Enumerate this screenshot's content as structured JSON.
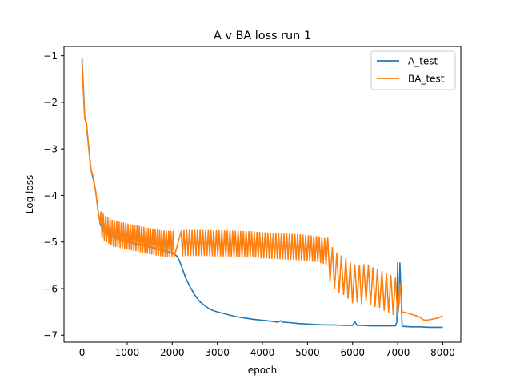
{
  "chart_data": {
    "type": "line",
    "title": "A v BA loss run 1",
    "xlabel": "epoch",
    "ylabel": "Log loss",
    "xlim": [
      -400,
      8400
    ],
    "ylim": [
      -7.15,
      -0.8
    ],
    "xticks": [
      0,
      1000,
      2000,
      3000,
      4000,
      5000,
      6000,
      7000,
      8000
    ],
    "xtick_labels": [
      "0",
      "1000",
      "2000",
      "3000",
      "4000",
      "5000",
      "6000",
      "7000",
      "8000"
    ],
    "yticks": [
      -7,
      -6,
      -5,
      -4,
      -3,
      -2,
      -1
    ],
    "ytick_labels": [
      "−7",
      "−6",
      "−5",
      "−4",
      "−3",
      "−2",
      "−1"
    ],
    "grid": false,
    "legend_position": "top-right",
    "series": [
      {
        "name": "A_test",
        "color": "#1f77b4",
        "x": [
          0,
          20,
          60,
          100,
          150,
          200,
          250,
          300,
          350,
          400,
          450,
          500,
          600,
          800,
          1000,
          1200,
          1400,
          1600,
          1800,
          2000,
          2100,
          2150,
          2200,
          2300,
          2400,
          2500,
          2600,
          2700,
          2800,
          2900,
          3000,
          3200,
          3400,
          3600,
          3800,
          4000,
          4200,
          4350,
          4400,
          4450,
          4600,
          4800,
          5000,
          5200,
          5400,
          5600,
          5800,
          6000,
          6050,
          6100,
          6200,
          6400,
          6600,
          6800,
          6950,
          6980,
          7000,
          7010,
          7030,
          7050,
          7100,
          7300,
          7500,
          7700,
          8000
        ],
        "y": [
          -1.05,
          -1.5,
          -2.3,
          -2.5,
          -3.0,
          -3.45,
          -3.65,
          -3.9,
          -4.3,
          -4.6,
          -4.72,
          -4.78,
          -4.85,
          -4.93,
          -4.99,
          -5.04,
          -5.08,
          -5.13,
          -5.18,
          -5.24,
          -5.3,
          -5.38,
          -5.5,
          -5.78,
          -5.97,
          -6.14,
          -6.27,
          -6.35,
          -6.42,
          -6.47,
          -6.5,
          -6.55,
          -6.6,
          -6.63,
          -6.66,
          -6.68,
          -6.7,
          -6.72,
          -6.69,
          -6.72,
          -6.73,
          -6.75,
          -6.76,
          -6.77,
          -6.78,
          -6.78,
          -6.79,
          -6.79,
          -6.71,
          -6.79,
          -6.79,
          -6.8,
          -6.8,
          -6.8,
          -6.8,
          -6.72,
          -5.45,
          -6.5,
          -6.3,
          -5.45,
          -6.81,
          -6.82,
          -6.82,
          -6.83,
          -6.83
        ]
      },
      {
        "name": "BA_test",
        "color": "#ff7f0e",
        "x": [
          0,
          20,
          60,
          100,
          150,
          200,
          250,
          300,
          350,
          400,
          450,
          500,
          600,
          700,
          800,
          900,
          1000,
          1100,
          1200,
          1300,
          1400,
          1500,
          1600,
          1700,
          1800,
          1900,
          2000,
          2100,
          2200,
          2300,
          2400,
          2500,
          2600,
          2700,
          2800,
          2900,
          3000,
          3200,
          3400,
          3600,
          3800,
          4000,
          4200,
          4400,
          4600,
          4800,
          5000,
          5200,
          5400,
          5500,
          5600,
          5700,
          5800,
          5900,
          6000,
          6100,
          6200,
          6300,
          6400,
          6500,
          6600,
          6700,
          6800,
          6900,
          7000,
          7050,
          7100,
          7200,
          7300,
          7400,
          7500,
          7550,
          7600,
          7700,
          7800,
          7900,
          8000
        ],
        "y": [
          -1.1,
          -1.6,
          -2.35,
          -2.45,
          -3.0,
          -3.45,
          -3.6,
          -3.9,
          -4.3,
          -4.6,
          -4.65,
          -4.7,
          -4.76,
          -4.82,
          -4.84,
          -4.86,
          -4.88,
          -4.9,
          -4.92,
          -4.94,
          -4.96,
          -4.98,
          -5.0,
          -5.02,
          -5.03,
          -5.04,
          -5.04,
          -5.05,
          -5.04,
          -5.02,
          -5.02,
          -5.02,
          -5.02,
          -5.02,
          -5.02,
          -5.03,
          -5.03,
          -5.03,
          -5.04,
          -5.04,
          -5.05,
          -5.07,
          -5.08,
          -5.09,
          -5.1,
          -5.11,
          -5.13,
          -5.15,
          -5.2,
          -5.45,
          -5.6,
          -5.68,
          -5.72,
          -5.8,
          -5.9,
          -5.88,
          -5.92,
          -5.86,
          -5.94,
          -5.98,
          -6.0,
          -6.06,
          -6.1,
          -6.15,
          -6.2,
          -6.3,
          -6.5,
          -6.52,
          -6.55,
          -6.58,
          -6.62,
          -6.66,
          -6.68,
          -6.67,
          -6.65,
          -6.63,
          -6.58
        ],
        "oscillation": [
          {
            "x_start": 420,
            "x_end": 2050,
            "period": 50,
            "amplitude": 0.3
          },
          {
            "x_start": 2200,
            "x_end": 5450,
            "period": 60,
            "amplitude": 0.3
          },
          {
            "x_start": 5450,
            "x_end": 7050,
            "period": 100,
            "amplitude": 0.45
          }
        ]
      }
    ]
  }
}
